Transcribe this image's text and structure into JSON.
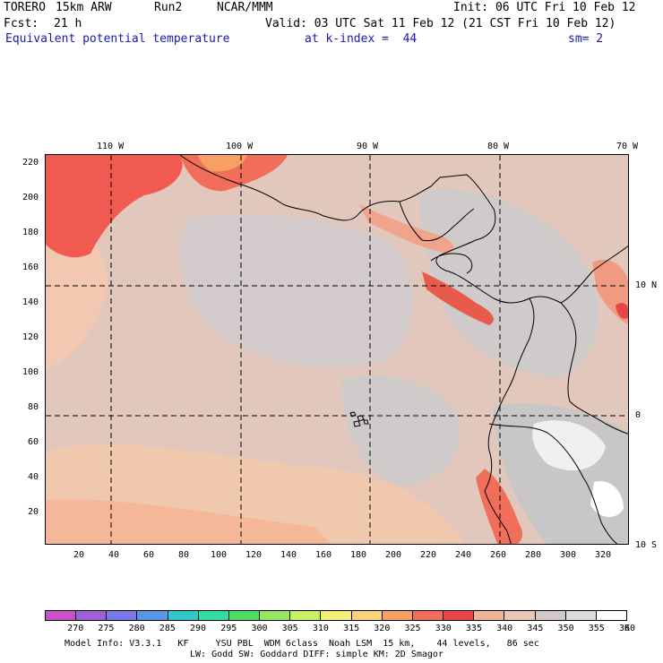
{
  "header": {
    "model": "TORERO",
    "resolution": "15km ARW",
    "run": "Run2",
    "org": "NCAR/MMM",
    "init": "Init: 06 UTC Fri 10 Feb 12",
    "fcst_label": "Fcst:",
    "fcst_value": "21 h",
    "valid": "Valid: 03 UTC Sat 11 Feb 12 (21 CST Fri 10 Feb 12)",
    "field": "Equivalent potential temperature",
    "level": "at k-index =  44",
    "smooth": "sm= 2"
  },
  "map": {
    "lon_labels": [
      "110 W",
      "100 W",
      "90 W",
      "80 W",
      "70 W"
    ],
    "lat_labels": [
      "10 N",
      "0",
      "10 S"
    ],
    "y_ticks": [
      "220",
      "200",
      "180",
      "160",
      "140",
      "120",
      "100",
      "80",
      "60",
      "40",
      "20"
    ],
    "x_ticks": [
      "20",
      "40",
      "60",
      "80",
      "100",
      "120",
      "140",
      "160",
      "180",
      "200",
      "220",
      "240",
      "260",
      "280",
      "300",
      "320"
    ]
  },
  "colorbar": {
    "labels": [
      "270",
      "275",
      "280",
      "285",
      "290",
      "295",
      "300",
      "305",
      "310",
      "315",
      "320",
      "325",
      "330",
      "335",
      "340",
      "345",
      "350",
      "355",
      "360"
    ],
    "unit": "K",
    "colors": [
      "#c850c8",
      "#a060d8",
      "#7878e8",
      "#5a96e6",
      "#30c8c8",
      "#32dca0",
      "#50dc64",
      "#96e664",
      "#c8f064",
      "#f0f078",
      "#fad278",
      "#f8a064",
      "#f06e5a",
      "#e64646",
      "#f0b496",
      "#e6c8b4",
      "#d2c8c8",
      "#dcdcdc",
      "#ffffff"
    ]
  },
  "footer": {
    "line1": "Model Info: V3.3.1   KF     YSU PBL  WDM 6class  Noah LSM  15 km,    44 levels,   86 sec",
    "line2": "LW: Godd SW: Goddard DIFF: simple KM: 2D Smagor"
  }
}
